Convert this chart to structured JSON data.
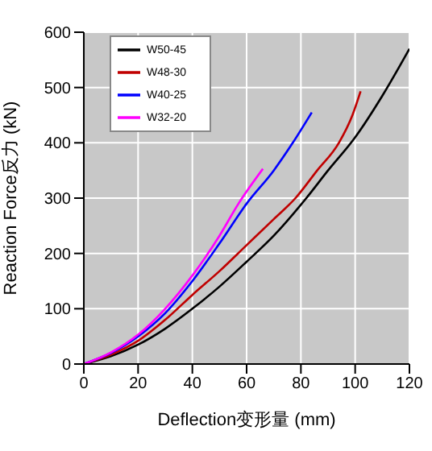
{
  "chart_data": {
    "type": "line",
    "xlabel": "Deflection变形量 (mm)",
    "ylabel": "Reaction Force反力 (kN)",
    "xlim": [
      0,
      120
    ],
    "xticks": [
      0,
      20,
      40,
      60,
      80,
      100,
      120
    ],
    "ylim": [
      0,
      600
    ],
    "yticks": [
      0,
      100,
      200,
      300,
      400,
      500,
      600
    ],
    "grid": true,
    "legend": "top left",
    "marker": "none",
    "line_style": "solid",
    "series": [
      {
        "name": "W50-45",
        "color": "#000000",
        "x": [
          0,
          10,
          20,
          30,
          40,
          50,
          60,
          70,
          82,
          90,
          100,
          110,
          120
        ],
        "values": [
          0,
          14,
          35,
          64,
          100,
          140,
          185,
          232,
          300,
          350,
          410,
          485,
          570
        ]
      },
      {
        "name": "W48-30",
        "color": "#c00000",
        "x": [
          0,
          10,
          20,
          30,
          40,
          50,
          60,
          70,
          78,
          86,
          94,
          99,
          102
        ],
        "values": [
          0,
          17,
          42,
          80,
          125,
          168,
          215,
          262,
          300,
          350,
          400,
          450,
          493
        ]
      },
      {
        "name": "W40-25",
        "color": "#0000ff",
        "x": [
          0,
          10,
          20,
          30,
          40,
          50,
          60,
          70,
          77,
          84
        ],
        "values": [
          0,
          20,
          50,
          92,
          150,
          218,
          290,
          350,
          400,
          455
        ]
      },
      {
        "name": "W32-20",
        "color": "#ff00ff",
        "x": [
          0,
          10,
          20,
          30,
          40,
          50,
          57,
          66
        ],
        "values": [
          0,
          21,
          53,
          100,
          160,
          232,
          290,
          353
        ]
      }
    ]
  }
}
